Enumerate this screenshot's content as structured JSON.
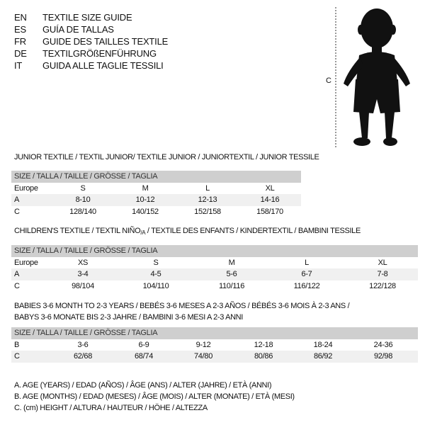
{
  "languages": [
    {
      "code": "EN",
      "text": "TEXTILE SIZE GUIDE"
    },
    {
      "code": "ES",
      "text": "GUÍA DE TALLAS"
    },
    {
      "code": "FR",
      "text": "GUIDE DES TAILLES TEXTILE"
    },
    {
      "code": "DE",
      "text": "TEXTILGRÖßENFÜHRUNG"
    },
    {
      "code": "IT",
      "text": "GUIDA ALLE TAGLIE TESSILI"
    }
  ],
  "figure": {
    "marker": "C",
    "icon": "child-silhouette"
  },
  "size_header": "SIZE / TALLA / TAILLE / GRÖSSE / TAGLIA",
  "junior": {
    "title": "JUNIOR TEXTILE / TEXTIL JUNIOR/ TEXTILE JUNIOR / JUNIORTEXTIL / JUNIOR TESSILE",
    "rows": [
      {
        "label": "Europe",
        "values": [
          "S",
          "M",
          "L",
          "XL"
        ]
      },
      {
        "label": "A",
        "values": [
          "8-10",
          "10-12",
          "12-13",
          "14-16"
        ]
      },
      {
        "label": "C",
        "values": [
          "128/140",
          "140/152",
          "152/158",
          "158/170"
        ]
      }
    ]
  },
  "children": {
    "title": "CHILDREN'S TEXTILE / TEXTIL NIÑO/A / TEXTILE DES ENFANTS / KINDERTEXTIL / BAMBINI TESSILE",
    "rows": [
      {
        "label": "Europe",
        "values": [
          "XS",
          "S",
          "M",
          "L",
          "XL"
        ]
      },
      {
        "label": "A",
        "values": [
          "3-4",
          "4-5",
          "5-6",
          "6-7",
          "7-8"
        ]
      },
      {
        "label": "C",
        "values": [
          "98/104",
          "104/110",
          "110/116",
          "116/122",
          "122/128"
        ]
      }
    ]
  },
  "babies": {
    "title_line1": "BABIES 3-6 MONTH TO 2-3 YEARS / BEBÉS 3-6 MESES A 2-3 AÑOS / BÉBÉS 3-6 MOIS À 2-3 ANS /",
    "title_line2": "BABYS 3-6 MONATE BIS 2-3 JAHRE / BAMBINI 3-6 MESI A 2-3 ANNI",
    "rows": [
      {
        "label": "B",
        "values": [
          "3-6",
          "6-9",
          "9-12",
          "12-18",
          "18-24",
          "24-36"
        ]
      },
      {
        "label": "C",
        "values": [
          "62/68",
          "68/74",
          "74/80",
          "80/86",
          "86/92",
          "92/98"
        ]
      }
    ]
  },
  "legend": [
    "A. AGE (YEARS) / EDAD (AÑOS) / ÂGE (ANS) / ALTER (JAHRE) / ETÀ (ANNI)",
    "B. AGE (MONTHS) / EDAD (MESES) / ÂGE (MOIS) / ALTER (MONATE) / ETÀ (MESI)",
    "C. (cm) HEIGHT / ALTURA / HAUTEUR / HÖHE / ALTEZZA"
  ]
}
